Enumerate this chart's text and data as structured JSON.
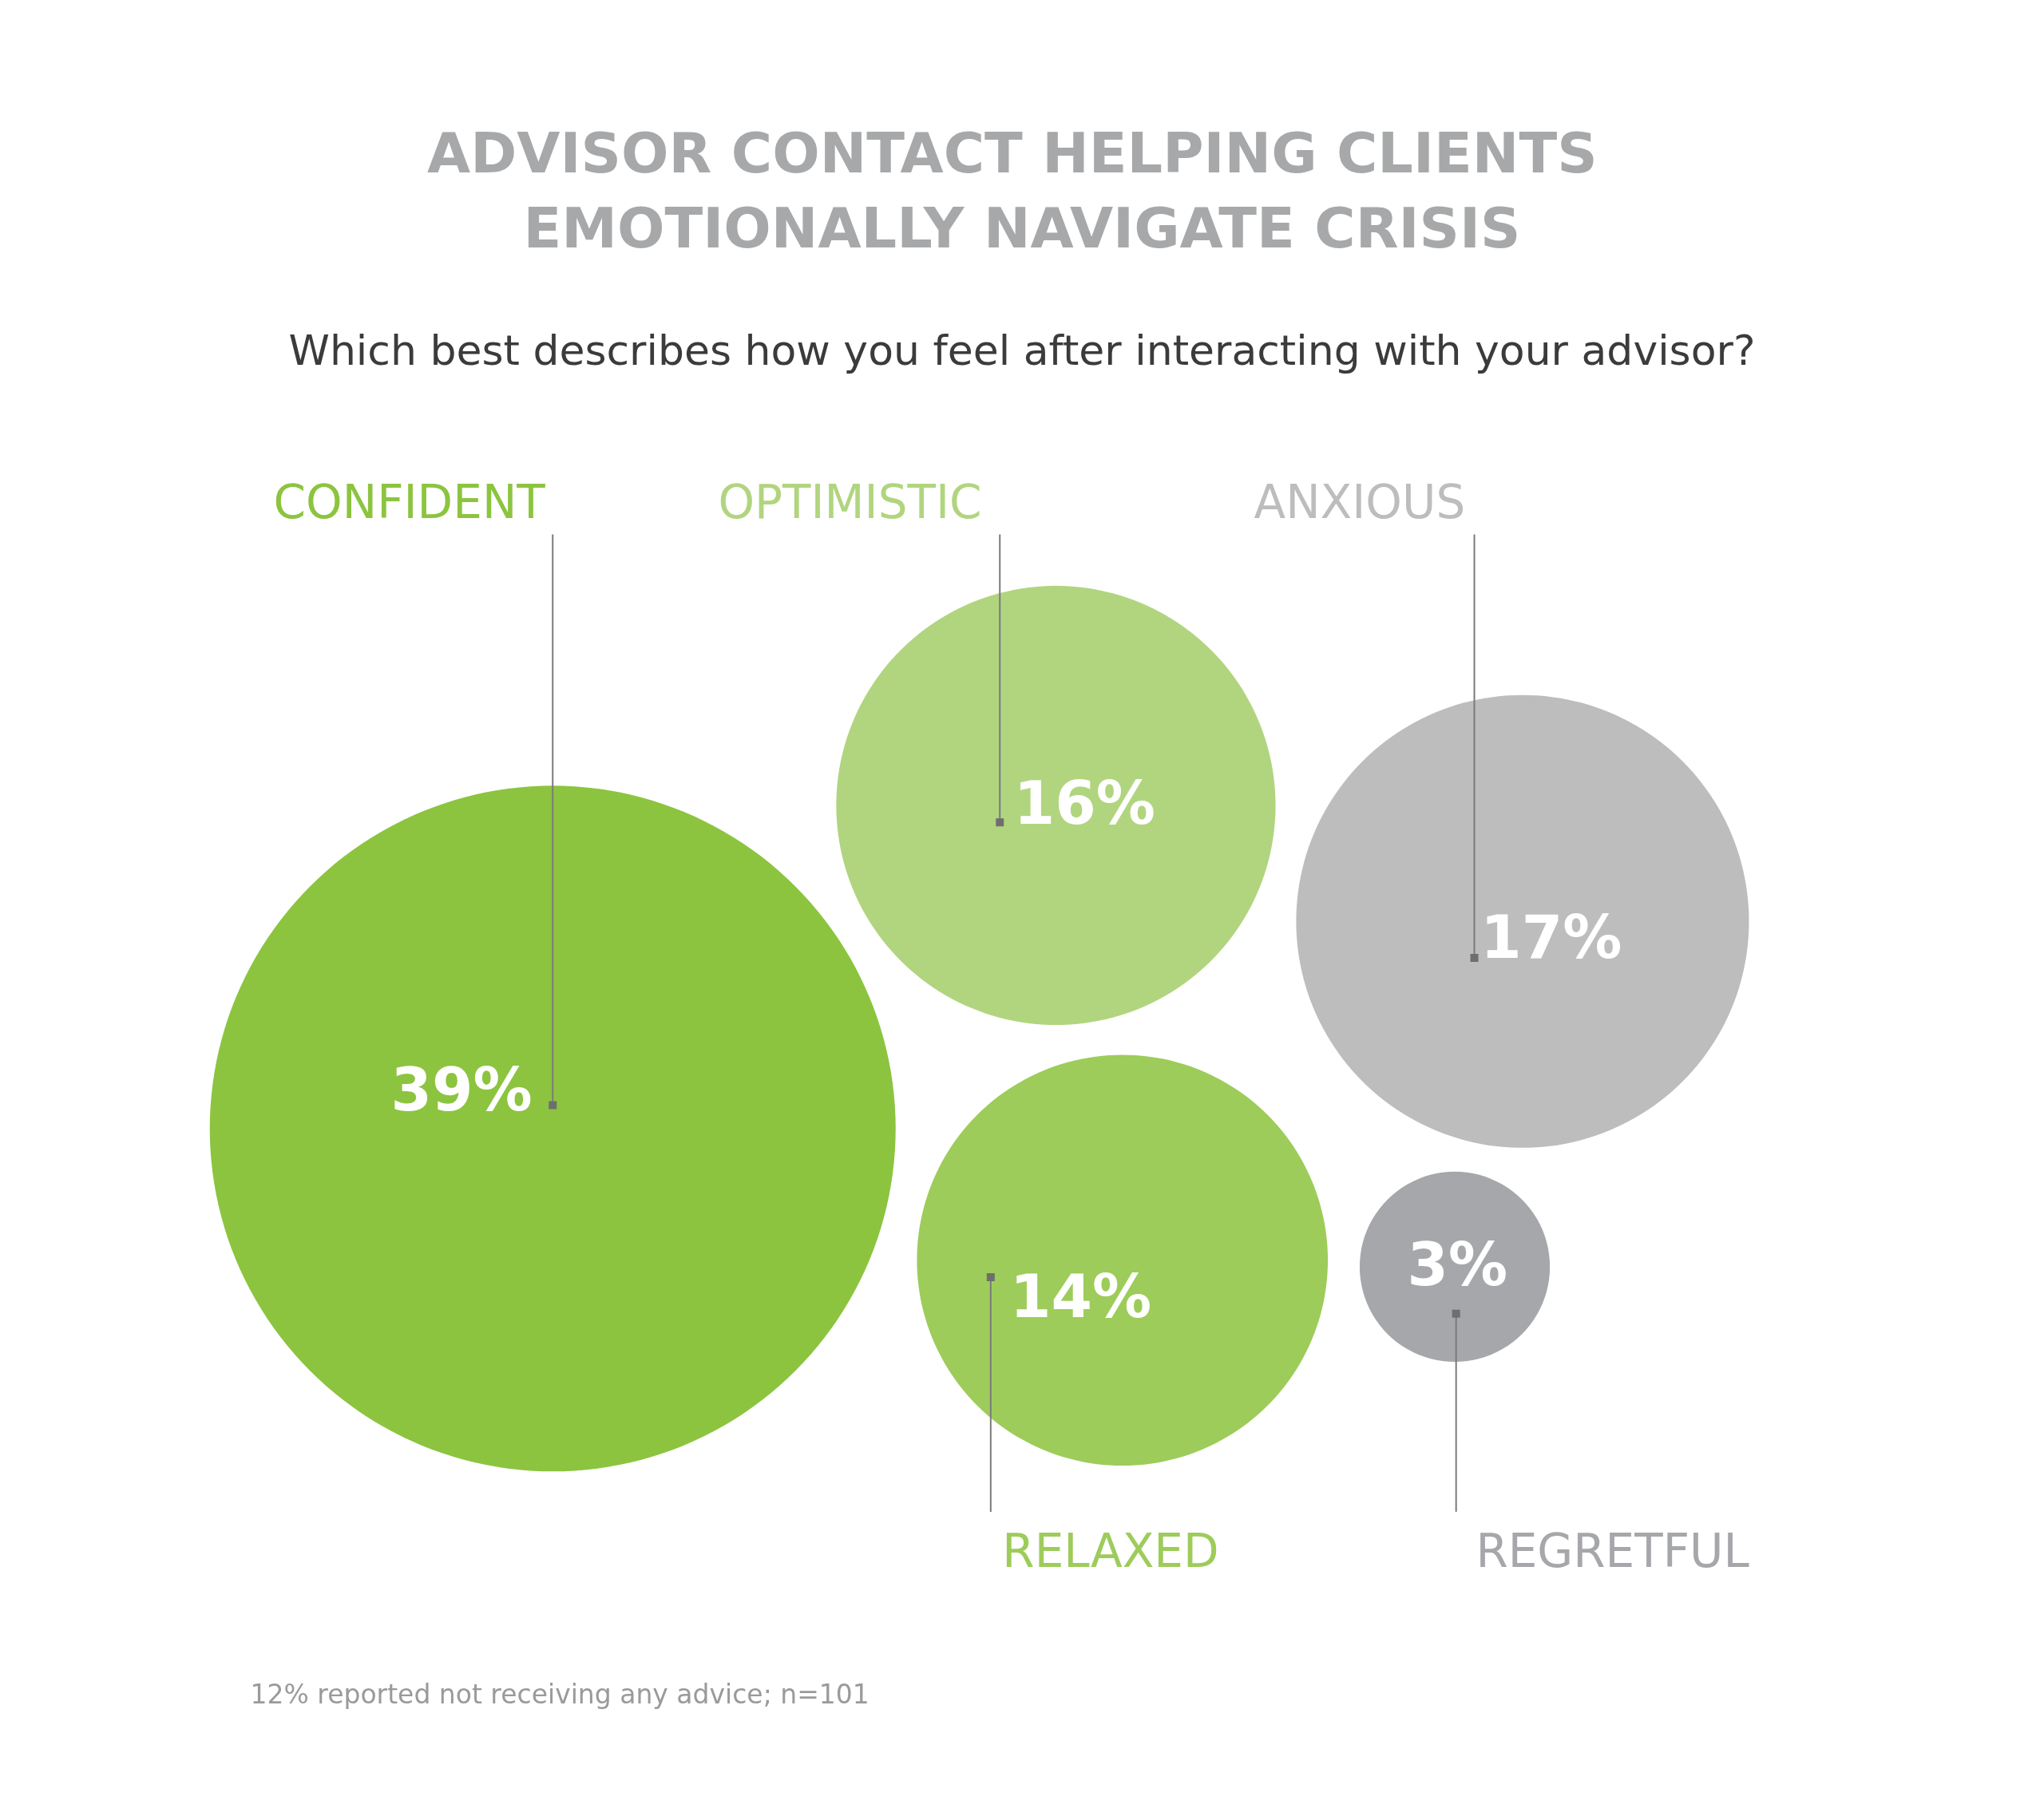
{
  "chart_data": {
    "type": "other",
    "title": "ADVISOR CONTACT HELPING CLIENTS EMOTIONALLY NAVIGATE CRISIS",
    "subtitle": "Which best describes how you feel after interacting with your advisor?",
    "categories": [
      "CONFIDENT",
      "OPTIMISTIC",
      "ANXIOUS",
      "RELAXED",
      "REGRETFUL"
    ],
    "values": [
      39,
      16,
      17,
      14,
      3
    ],
    "value_labels": [
      "39%",
      "16%",
      "17%",
      "14%",
      "3%"
    ],
    "colors": [
      "#8cc43f",
      "#b1d57f",
      "#bcbdbc",
      "#9dcc5a",
      "#a6a7aa"
    ],
    "annotations": [
      "12% reported not receiving any advice; n=101"
    ]
  }
}
